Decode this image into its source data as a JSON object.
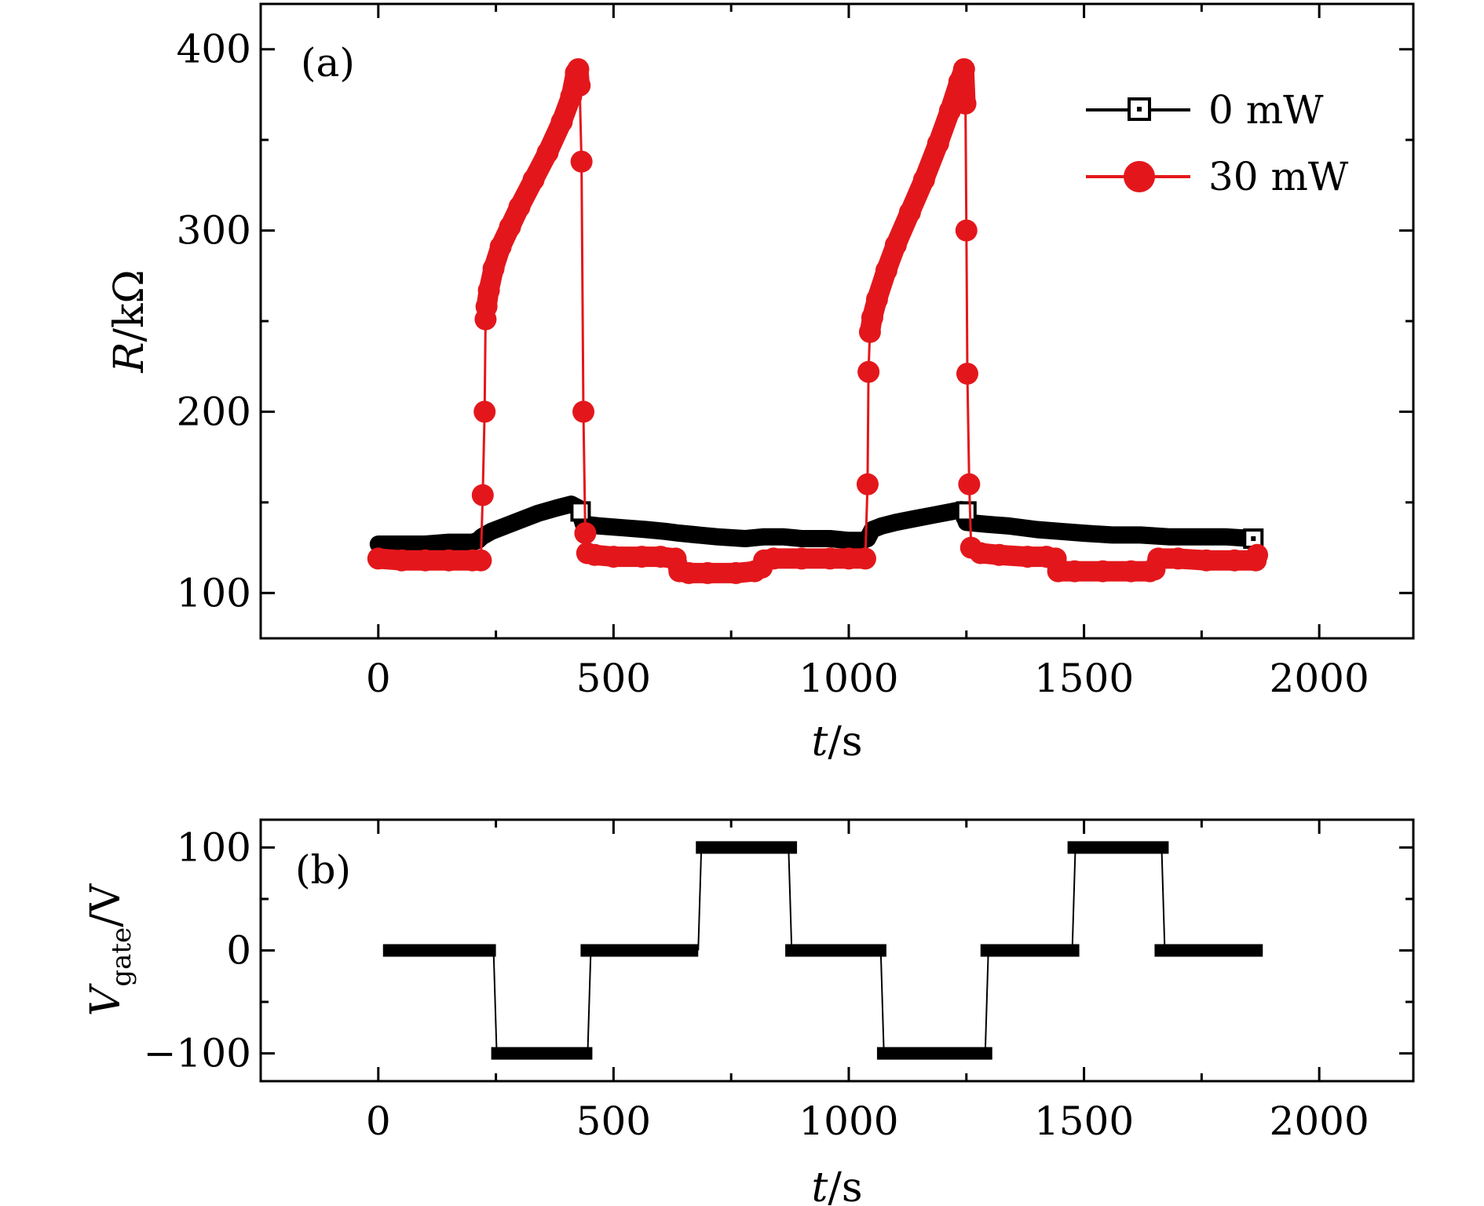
{
  "chart_data": [
    {
      "type": "line",
      "panel_label": "(a)",
      "xlabel": {
        "italic": "t",
        "rest": "/s"
      },
      "ylabel": {
        "italic": "R",
        "rest": "/kΩ"
      },
      "xlim": [
        -250,
        2200
      ],
      "ylim": [
        75,
        425
      ],
      "xticks": [
        0,
        500,
        1000,
        1500,
        2000
      ],
      "yticks": [
        100,
        200,
        300,
        400
      ],
      "grid": false,
      "legend_position": "top-right",
      "series": [
        {
          "name": "0 mW",
          "color": "#000000",
          "marker": "open-square-dot",
          "points": [
            [
              0,
              127
            ],
            [
              50,
              127
            ],
            [
              100,
              127
            ],
            [
              150,
              128
            ],
            [
              200,
              128
            ],
            [
              212,
              129
            ],
            [
              220,
              131
            ],
            [
              240,
              134
            ],
            [
              270,
              137
            ],
            [
              300,
              140
            ],
            [
              340,
              144
            ],
            [
              380,
              147
            ],
            [
              410,
              149
            ],
            [
              425,
              147
            ],
            [
              430,
              143
            ],
            [
              436,
              138
            ],
            [
              470,
              137
            ],
            [
              520,
              136
            ],
            [
              570,
              135
            ],
            [
              610,
              134
            ],
            [
              640,
              133
            ],
            [
              680,
              132
            ],
            [
              720,
              131
            ],
            [
              780,
              130
            ],
            [
              820,
              131
            ],
            [
              860,
              131
            ],
            [
              900,
              130
            ],
            [
              960,
              130
            ],
            [
              1000,
              129
            ],
            [
              1030,
              129
            ],
            [
              1040,
              130
            ],
            [
              1050,
              135
            ],
            [
              1070,
              137
            ],
            [
              1100,
              139
            ],
            [
              1140,
              141
            ],
            [
              1180,
              143
            ],
            [
              1220,
              145
            ],
            [
              1240,
              146
            ],
            [
              1250,
              139
            ],
            [
              1290,
              138
            ],
            [
              1340,
              137
            ],
            [
              1400,
              135
            ],
            [
              1450,
              134
            ],
            [
              1500,
              133
            ],
            [
              1560,
              132
            ],
            [
              1620,
              132
            ],
            [
              1680,
              131
            ],
            [
              1740,
              131
            ],
            [
              1800,
              131
            ],
            [
              1860,
              130
            ]
          ]
        },
        {
          "name": "30 mW",
          "color": "#e3171b",
          "marker": "filled-circle",
          "points": [
            [
              0,
              119
            ],
            [
              50,
              118
            ],
            [
              100,
              118
            ],
            [
              150,
              118
            ],
            [
              200,
              118
            ],
            [
              218,
              118
            ],
            [
              222,
              154
            ],
            [
              226,
              200
            ],
            [
              228,
              251
            ],
            [
              230,
              258
            ],
            [
              235,
              267
            ],
            [
              245,
              279
            ],
            [
              260,
              291
            ],
            [
              280,
              302
            ],
            [
              300,
              313
            ],
            [
              330,
              328
            ],
            [
              360,
              343
            ],
            [
              390,
              360
            ],
            [
              410,
              374
            ],
            [
              420,
              387
            ],
            [
              425,
              389
            ],
            [
              428,
              380
            ],
            [
              432,
              338
            ],
            [
              436,
              200
            ],
            [
              440,
              133
            ],
            [
              444,
              122
            ],
            [
              460,
              121
            ],
            [
              500,
              120
            ],
            [
              560,
              120
            ],
            [
              600,
              120
            ],
            [
              632,
              119
            ],
            [
              640,
              112
            ],
            [
              660,
              111
            ],
            [
              700,
              111
            ],
            [
              760,
              111
            ],
            [
              800,
              112
            ],
            [
              815,
              114
            ],
            [
              820,
              118
            ],
            [
              840,
              119
            ],
            [
              900,
              119
            ],
            [
              960,
              119
            ],
            [
              1000,
              119
            ],
            [
              1035,
              119
            ],
            [
              1040,
              160
            ],
            [
              1042,
              222
            ],
            [
              1045,
              244
            ],
            [
              1050,
              252
            ],
            [
              1060,
              262
            ],
            [
              1080,
              278
            ],
            [
              1100,
              292
            ],
            [
              1130,
              310
            ],
            [
              1160,
              328
            ],
            [
              1190,
              348
            ],
            [
              1215,
              366
            ],
            [
              1235,
              382
            ],
            [
              1245,
              389
            ],
            [
              1248,
              370
            ],
            [
              1250,
              300
            ],
            [
              1252,
              221
            ],
            [
              1256,
              160
            ],
            [
              1260,
              125
            ],
            [
              1280,
              122
            ],
            [
              1320,
              121
            ],
            [
              1380,
              120
            ],
            [
              1420,
              120
            ],
            [
              1440,
              119
            ],
            [
              1445,
              112
            ],
            [
              1480,
              112
            ],
            [
              1540,
              112
            ],
            [
              1600,
              112
            ],
            [
              1640,
              112
            ],
            [
              1650,
              113
            ],
            [
              1658,
              119
            ],
            [
              1700,
              119
            ],
            [
              1760,
              118
            ],
            [
              1820,
              118
            ],
            [
              1865,
              118
            ],
            [
              1868,
              121
            ]
          ]
        }
      ]
    },
    {
      "type": "line",
      "panel_label": "(b)",
      "xlabel": {
        "italic": "t",
        "rest": "/s"
      },
      "ylabel": {
        "italic": "V",
        "sub": "gate",
        "rest": "/V"
      },
      "xlim": [
        -250,
        2200
      ],
      "ylim": [
        -127,
        127
      ],
      "xticks": [
        0,
        500,
        1000,
        1500,
        2000
      ],
      "yticks": [
        -100,
        0,
        100
      ],
      "ytick_labels": [
        "−100",
        "0",
        "100"
      ],
      "grid": false,
      "series": [
        {
          "name": "",
          "color": "#000000",
          "segments": [
            {
              "x0": 10,
              "x1": 250,
              "y": 0
            },
            {
              "x0": 240,
              "x1": 455,
              "y": -100
            },
            {
              "x0": 430,
              "x1": 680,
              "y": 0
            },
            {
              "x0": 675,
              "x1": 890,
              "y": 100
            },
            {
              "x0": 865,
              "x1": 1080,
              "y": 0
            },
            {
              "x0": 1060,
              "x1": 1305,
              "y": -100
            },
            {
              "x0": 1280,
              "x1": 1490,
              "y": 0
            },
            {
              "x0": 1465,
              "x1": 1680,
              "y": 100
            },
            {
              "x0": 1650,
              "x1": 1880,
              "y": 0
            }
          ],
          "transitions": [
            [
              245,
              0,
              -100
            ],
            [
              445,
              -100,
              0
            ],
            [
              680,
              0,
              100
            ],
            [
              872,
              100,
              0
            ],
            [
              1068,
              0,
              -100
            ],
            [
              1290,
              -100,
              0
            ],
            [
              1475,
              0,
              100
            ],
            [
              1665,
              100,
              0
            ]
          ]
        }
      ]
    }
  ]
}
